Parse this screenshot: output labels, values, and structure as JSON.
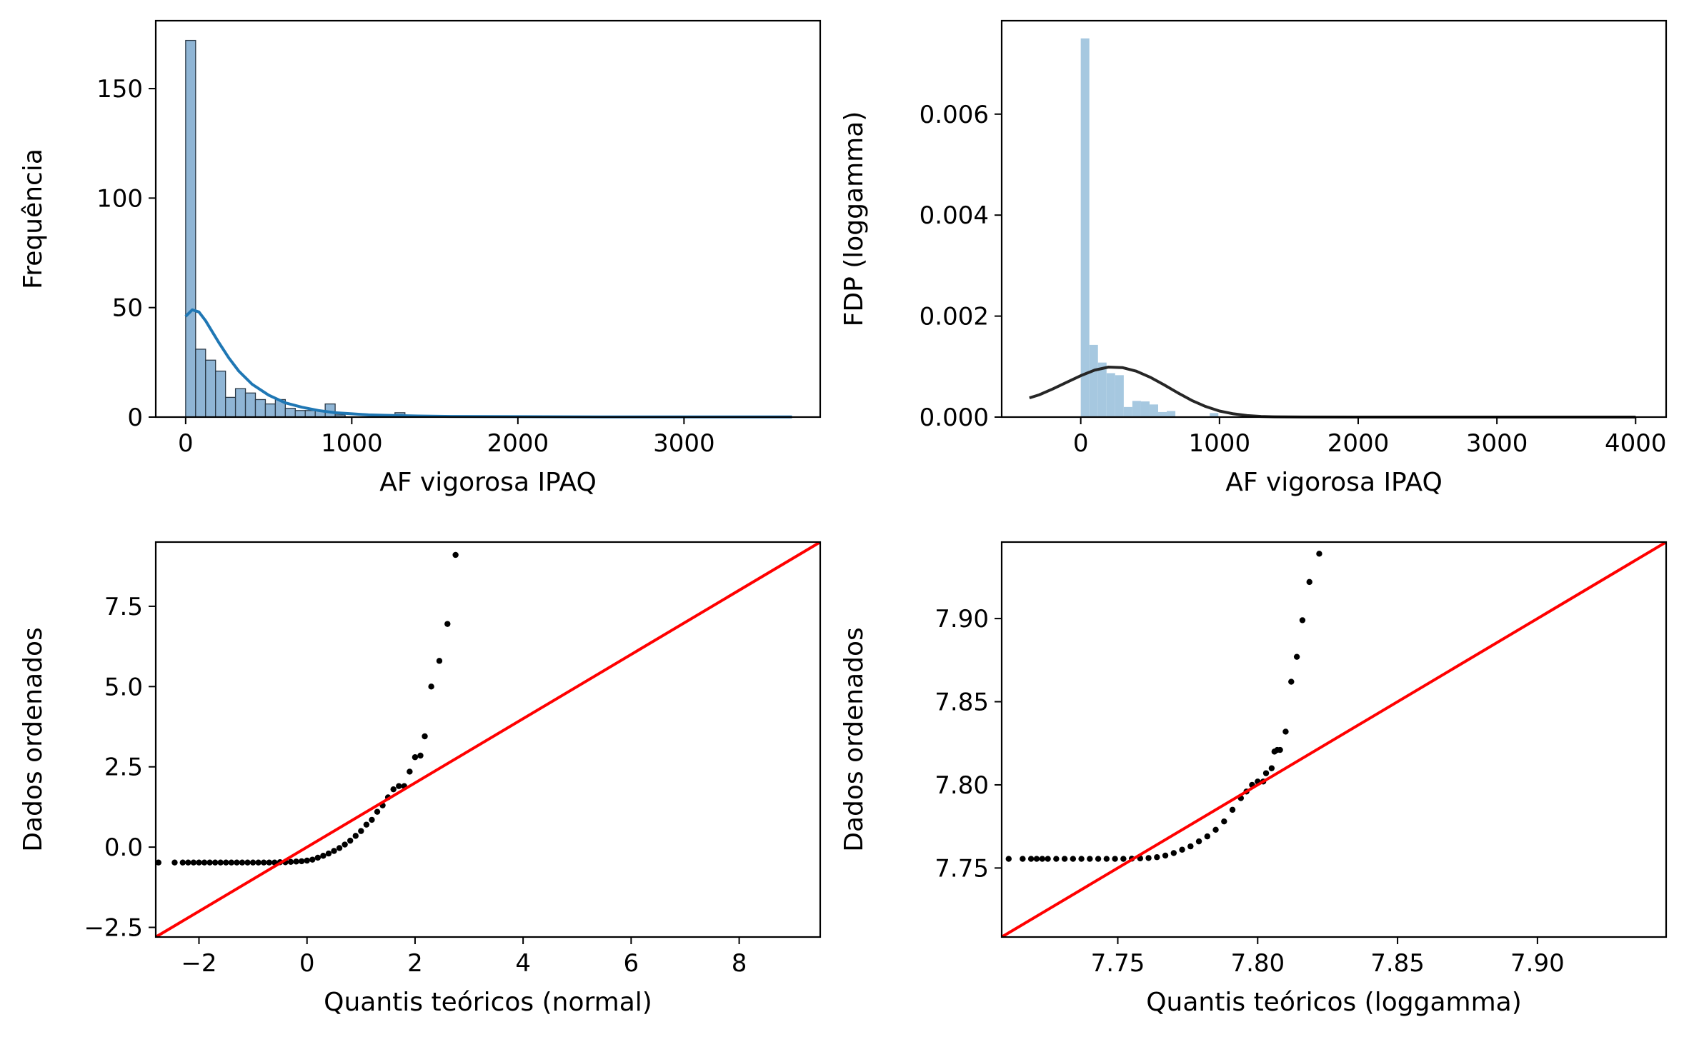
{
  "colors": {
    "hist_fill": "#8fb5d5",
    "hist_edge": "#2b3a48",
    "kde_line": "#1f77b4",
    "pdf_hist": "#a6c8e0",
    "pdf_line": "#262626",
    "qq_points": "#000000",
    "qq_line": "#ff0000"
  },
  "chart_data": [
    {
      "type": "bar",
      "xlabel": "AF vigorosa IPAQ",
      "ylabel": "Frequência",
      "xlim": [
        -180,
        3820
      ],
      "ylim": [
        0,
        181
      ],
      "xticks": [
        "0",
        "1000",
        "2000",
        "3000"
      ],
      "xtick_values": [
        0,
        1000,
        2000,
        3000
      ],
      "yticks": [
        "0",
        "50",
        "100",
        "150"
      ],
      "ytick_values": [
        0,
        50,
        100,
        150
      ],
      "bin_width": 60,
      "bin_start": 0,
      "counts": [
        172,
        31,
        26,
        21,
        9,
        13,
        11,
        8,
        6,
        8,
        4,
        3,
        3,
        3,
        6,
        1,
        0,
        0,
        0,
        0,
        0,
        2
      ],
      "kde": {
        "x": [
          0,
          40,
          80,
          120,
          160,
          200,
          260,
          320,
          400,
          500,
          600,
          700,
          800,
          900,
          1000,
          1100,
          1200,
          1400,
          1600,
          2000,
          2500,
          3000,
          3650
        ],
        "y": [
          46,
          49,
          48,
          44,
          39,
          34,
          27,
          21,
          15,
          10,
          6.5,
          4.5,
          3,
          2,
          1.5,
          1,
          0.8,
          0.5,
          0.3,
          0.2,
          0.1,
          0.1,
          0.1
        ]
      }
    },
    {
      "type": "bar",
      "xlabel": "AF vigorosa IPAQ",
      "ylabel": "FDP (loggamma)",
      "xlim": [
        -570,
        4220
      ],
      "ylim": [
        0,
        0.00785
      ],
      "xticks": [
        "0",
        "1000",
        "2000",
        "3000",
        "4000"
      ],
      "xtick_values": [
        0,
        1000,
        2000,
        3000,
        4000
      ],
      "yticks": [
        "0.000",
        "0.002",
        "0.004",
        "0.006"
      ],
      "ytick_values": [
        0,
        0.002,
        0.004,
        0.006
      ],
      "bin_width": 62,
      "bin_start": 0,
      "density": [
        0.0075,
        0.00143,
        0.00108,
        0.00087,
        0.00083,
        0.0002,
        0.00032,
        0.00031,
        0.00025,
        0.0001,
        0.00012,
        0,
        0,
        0,
        0,
        8e-05
      ],
      "pdf": {
        "x": [
          -370,
          -300,
          -200,
          -100,
          0,
          100,
          200,
          300,
          400,
          500,
          600,
          700,
          800,
          900,
          1000,
          1100,
          1200,
          1300,
          1400,
          1600,
          2000,
          2500,
          3000,
          3500,
          4000
        ],
        "y": [
          0.00038,
          0.00044,
          0.00056,
          0.00069,
          0.00082,
          0.00093,
          0.00099,
          0.00098,
          0.00091,
          0.00079,
          0.00064,
          0.00048,
          0.00033,
          0.00021,
          0.00012,
          6.5e-05,
          3e-05,
          1.2e-05,
          5e-06,
          1e-06,
          0,
          0,
          0,
          0,
          0
        ]
      }
    },
    {
      "type": "scatter",
      "xlabel": "Quantis teóricos (normal)",
      "ylabel": "Dados ordenados",
      "xlim": [
        -2.8,
        9.5
      ],
      "ylim": [
        -2.8,
        9.5
      ],
      "xticks": [
        "−2",
        "0",
        "2",
        "4",
        "6",
        "8"
      ],
      "xtick_values": [
        -2,
        0,
        2,
        4,
        6,
        8
      ],
      "yticks": [
        "−2.5",
        "0.0",
        "2.5",
        "5.0",
        "7.5"
      ],
      "ytick_values": [
        -2.5,
        0,
        2.5,
        5,
        7.5
      ],
      "reference_line": {
        "x": [
          -2.8,
          9.5
        ],
        "y": [
          -2.8,
          9.5
        ]
      },
      "points": {
        "x": [
          -2.75,
          -2.45,
          -2.3,
          -2.2,
          -2.1,
          -2.0,
          -1.9,
          -1.8,
          -1.7,
          -1.6,
          -1.5,
          -1.4,
          -1.3,
          -1.2,
          -1.1,
          -1.0,
          -0.9,
          -0.8,
          -0.7,
          -0.6,
          -0.5,
          -0.4,
          -0.3,
          -0.2,
          -0.1,
          0.0,
          0.1,
          0.2,
          0.3,
          0.4,
          0.5,
          0.6,
          0.7,
          0.8,
          0.9,
          1.0,
          1.1,
          1.2,
          1.3,
          1.4,
          1.5,
          1.6,
          1.7,
          1.8,
          1.9,
          2.0,
          2.1,
          2.18,
          2.3,
          2.45,
          2.6,
          2.75
        ],
        "y": [
          -0.48,
          -0.48,
          -0.48,
          -0.48,
          -0.48,
          -0.48,
          -0.48,
          -0.48,
          -0.48,
          -0.48,
          -0.48,
          -0.48,
          -0.48,
          -0.48,
          -0.48,
          -0.48,
          -0.48,
          -0.48,
          -0.48,
          -0.48,
          -0.47,
          -0.47,
          -0.46,
          -0.45,
          -0.44,
          -0.42,
          -0.39,
          -0.33,
          -0.27,
          -0.2,
          -0.12,
          -0.03,
          0.08,
          0.2,
          0.35,
          0.5,
          0.7,
          0.85,
          1.1,
          1.3,
          1.55,
          1.8,
          1.9,
          1.9,
          2.35,
          2.8,
          2.85,
          3.45,
          5.0,
          5.8,
          6.95,
          9.1
        ]
      }
    },
    {
      "type": "scatter",
      "xlabel": "Quantis teóricos (loggamma)",
      "ylabel": "Dados ordenados",
      "xlim": [
        7.7085,
        7.946
      ],
      "ylim": [
        7.7085,
        7.946
      ],
      "xticks": [
        "7.75",
        "7.80",
        "7.85",
        "7.90"
      ],
      "xtick_values": [
        7.75,
        7.8,
        7.85,
        7.9
      ],
      "yticks": [
        "7.75",
        "7.80",
        "7.85",
        "7.90"
      ],
      "ytick_values": [
        7.75,
        7.8,
        7.85,
        7.9
      ],
      "reference_line": {
        "x": [
          7.7085,
          7.946
        ],
        "y": [
          7.7085,
          7.946
        ]
      },
      "points": {
        "x": [
          7.711,
          7.716,
          7.719,
          7.721,
          7.723,
          7.725,
          7.728,
          7.731,
          7.734,
          7.737,
          7.74,
          7.743,
          7.746,
          7.749,
          7.752,
          7.755,
          7.758,
          7.761,
          7.764,
          7.767,
          7.77,
          7.773,
          7.776,
          7.779,
          7.782,
          7.785,
          7.788,
          7.791,
          7.794,
          7.796,
          7.798,
          7.8,
          7.802,
          7.803,
          7.805,
          7.806,
          7.807,
          7.808,
          7.81,
          7.812,
          7.814,
          7.816,
          7.8185,
          7.822
        ],
        "y": [
          7.7555,
          7.7555,
          7.7555,
          7.7555,
          7.7555,
          7.7555,
          7.7555,
          7.7555,
          7.7555,
          7.7555,
          7.7555,
          7.7555,
          7.7555,
          7.7555,
          7.7555,
          7.7556,
          7.7558,
          7.756,
          7.7565,
          7.7575,
          7.759,
          7.761,
          7.763,
          7.766,
          7.769,
          7.773,
          7.778,
          7.785,
          7.792,
          7.796,
          7.8,
          7.802,
          7.802,
          7.807,
          7.81,
          7.82,
          7.821,
          7.821,
          7.832,
          7.862,
          7.877,
          7.899,
          7.922,
          7.939
        ]
      }
    }
  ]
}
